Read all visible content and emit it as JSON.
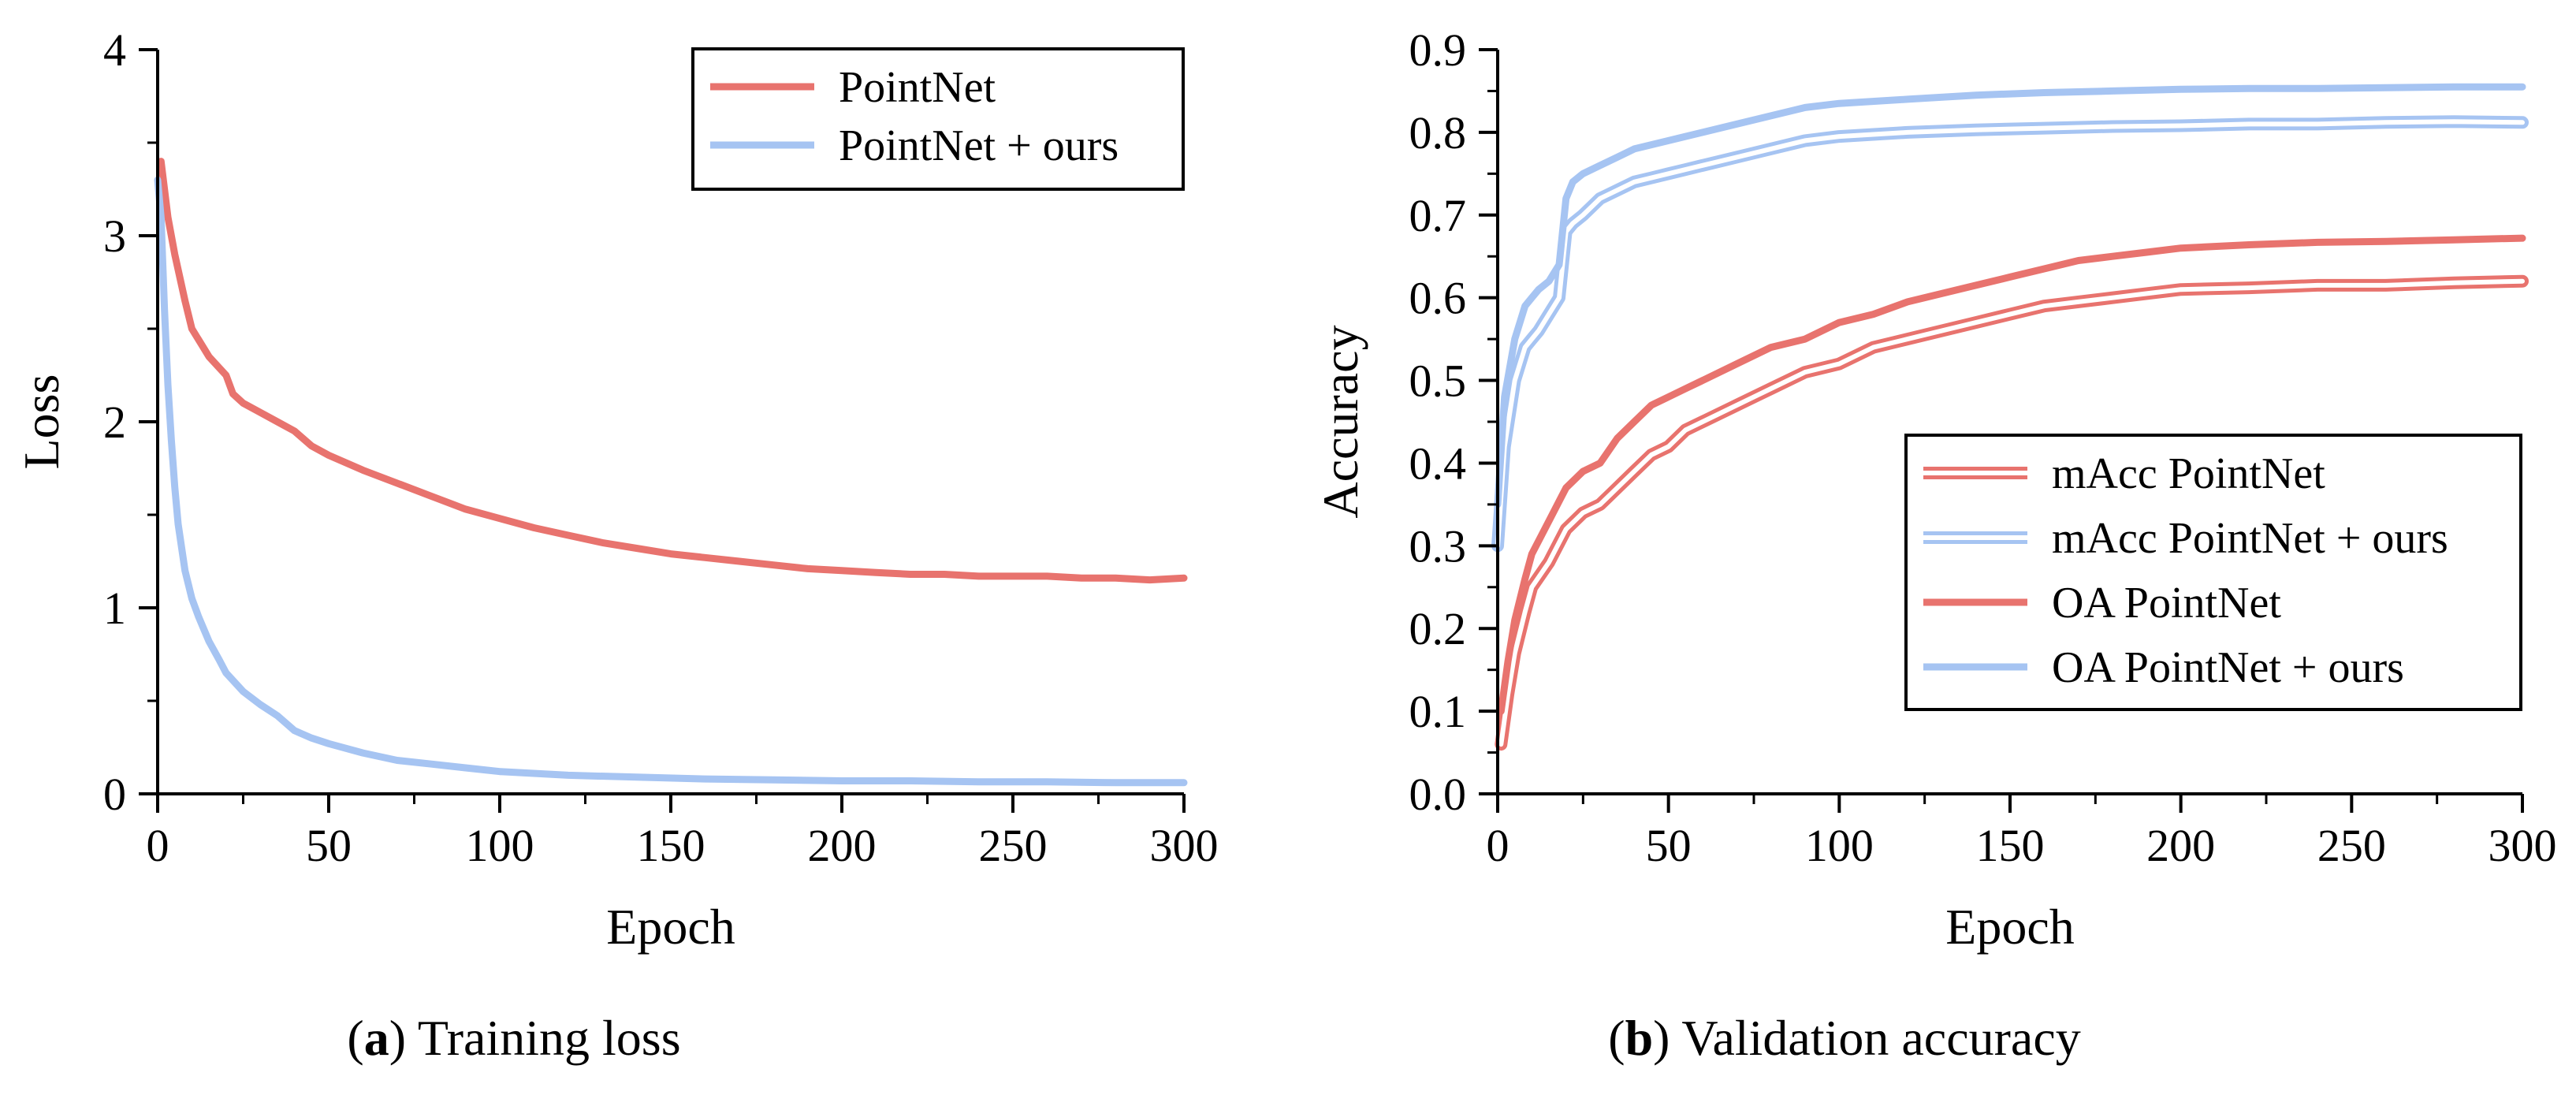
{
  "colors": {
    "red": "#e8736e",
    "blue": "#a6c4f2"
  },
  "captions": {
    "a": {
      "letter": "a",
      "open": "(",
      "close": ")",
      "text": " Training loss"
    },
    "b": {
      "letter": "b",
      "open": "(",
      "close": ")",
      "text": " Validation accuracy"
    }
  },
  "chart_data": [
    {
      "id": "training-loss",
      "type": "line",
      "title": "",
      "xlabel": "Epoch",
      "ylabel": "Loss",
      "xlim": [
        0,
        300
      ],
      "ylim": [
        0,
        4
      ],
      "xticks": [
        0,
        50,
        100,
        150,
        200,
        250,
        300
      ],
      "xticklabels": [
        "0",
        "50",
        "100",
        "150",
        "200",
        "250",
        "300"
      ],
      "yticks": [
        0,
        1,
        2,
        3,
        4
      ],
      "yticklabels": [
        "0",
        "1",
        "2",
        "3",
        "4"
      ],
      "legend_position": "top-right",
      "series": [
        {
          "name": "PointNet",
          "style": "solid",
          "color": "red",
          "points": [
            [
              1,
              3.4
            ],
            [
              3,
              3.1
            ],
            [
              5,
              2.9
            ],
            [
              8,
              2.65
            ],
            [
              10,
              2.5
            ],
            [
              15,
              2.35
            ],
            [
              20,
              2.25
            ],
            [
              22,
              2.15
            ],
            [
              25,
              2.1
            ],
            [
              30,
              2.05
            ],
            [
              35,
              2.0
            ],
            [
              40,
              1.95
            ],
            [
              45,
              1.87
            ],
            [
              50,
              1.82
            ],
            [
              60,
              1.74
            ],
            [
              70,
              1.67
            ],
            [
              80,
              1.6
            ],
            [
              90,
              1.53
            ],
            [
              100,
              1.48
            ],
            [
              110,
              1.43
            ],
            [
              120,
              1.39
            ],
            [
              130,
              1.35
            ],
            [
              140,
              1.32
            ],
            [
              150,
              1.29
            ],
            [
              160,
              1.27
            ],
            [
              170,
              1.25
            ],
            [
              180,
              1.23
            ],
            [
              190,
              1.21
            ],
            [
              200,
              1.2
            ],
            [
              210,
              1.19
            ],
            [
              220,
              1.18
            ],
            [
              230,
              1.18
            ],
            [
              240,
              1.17
            ],
            [
              250,
              1.17
            ],
            [
              260,
              1.17
            ],
            [
              270,
              1.16
            ],
            [
              280,
              1.16
            ],
            [
              290,
              1.15
            ],
            [
              300,
              1.16
            ]
          ]
        },
        {
          "name": "PointNet + ours",
          "style": "solid",
          "color": "blue",
          "points": [
            [
              0,
              3.3
            ],
            [
              1,
              3.1
            ],
            [
              2,
              2.6
            ],
            [
              3,
              2.2
            ],
            [
              4,
              1.9
            ],
            [
              5,
              1.65
            ],
            [
              6,
              1.45
            ],
            [
              8,
              1.2
            ],
            [
              10,
              1.05
            ],
            [
              12,
              0.95
            ],
            [
              15,
              0.82
            ],
            [
              18,
              0.72
            ],
            [
              20,
              0.65
            ],
            [
              25,
              0.55
            ],
            [
              30,
              0.48
            ],
            [
              35,
              0.42
            ],
            [
              40,
              0.34
            ],
            [
              45,
              0.3
            ],
            [
              50,
              0.27
            ],
            [
              60,
              0.22
            ],
            [
              70,
              0.18
            ],
            [
              80,
              0.16
            ],
            [
              90,
              0.14
            ],
            [
              100,
              0.12
            ],
            [
              120,
              0.1
            ],
            [
              140,
              0.09
            ],
            [
              160,
              0.08
            ],
            [
              180,
              0.075
            ],
            [
              200,
              0.07
            ],
            [
              220,
              0.07
            ],
            [
              240,
              0.065
            ],
            [
              260,
              0.065
            ],
            [
              280,
              0.06
            ],
            [
              300,
              0.06
            ]
          ]
        }
      ]
    },
    {
      "id": "validation-accuracy",
      "type": "line",
      "title": "",
      "xlabel": "Epoch",
      "ylabel": "Accuracy",
      "xlim": [
        0,
        300
      ],
      "ylim": [
        0,
        0.9
      ],
      "xticks": [
        0,
        50,
        100,
        150,
        200,
        250,
        300
      ],
      "xticklabels": [
        "0",
        "50",
        "100",
        "150",
        "200",
        "250",
        "300"
      ],
      "yticks": [
        0,
        0.1,
        0.2,
        0.3,
        0.4,
        0.5,
        0.6,
        0.7,
        0.8,
        0.9
      ],
      "yticklabels": [
        "0.0",
        "0.1",
        "0.2",
        "0.3",
        "0.4",
        "0.5",
        "0.6",
        "0.7",
        "0.8",
        "0.9"
      ],
      "legend_position": "bottom-right",
      "series": [
        {
          "name": "mAcc PointNet",
          "style": "double",
          "color": "red",
          "points": [
            [
              1,
              0.06
            ],
            [
              3,
              0.12
            ],
            [
              5,
              0.17
            ],
            [
              8,
              0.22
            ],
            [
              10,
              0.25
            ],
            [
              15,
              0.28
            ],
            [
              20,
              0.32
            ],
            [
              25,
              0.34
            ],
            [
              30,
              0.35
            ],
            [
              35,
              0.37
            ],
            [
              40,
              0.39
            ],
            [
              45,
              0.41
            ],
            [
              50,
              0.42
            ],
            [
              55,
              0.44
            ],
            [
              60,
              0.45
            ],
            [
              70,
              0.47
            ],
            [
              80,
              0.49
            ],
            [
              90,
              0.51
            ],
            [
              100,
              0.52
            ],
            [
              110,
              0.54
            ],
            [
              120,
              0.55
            ],
            [
              130,
              0.56
            ],
            [
              140,
              0.57
            ],
            [
              150,
              0.58
            ],
            [
              160,
              0.59
            ],
            [
              170,
              0.595
            ],
            [
              180,
              0.6
            ],
            [
              190,
              0.605
            ],
            [
              200,
              0.61
            ],
            [
              220,
              0.612
            ],
            [
              240,
              0.615
            ],
            [
              260,
              0.615
            ],
            [
              280,
              0.618
            ],
            [
              300,
              0.62
            ]
          ]
        },
        {
          "name": "mAcc PointNet + ours",
          "style": "double",
          "color": "blue",
          "points": [
            [
              0,
              0.3
            ],
            [
              2,
              0.42
            ],
            [
              5,
              0.5
            ],
            [
              8,
              0.54
            ],
            [
              10,
              0.55
            ],
            [
              12,
              0.56
            ],
            [
              15,
              0.58
            ],
            [
              18,
              0.6
            ],
            [
              20,
              0.68
            ],
            [
              22,
              0.69
            ],
            [
              25,
              0.7
            ],
            [
              30,
              0.72
            ],
            [
              35,
              0.73
            ],
            [
              40,
              0.74
            ],
            [
              45,
              0.745
            ],
            [
              50,
              0.75
            ],
            [
              55,
              0.755
            ],
            [
              60,
              0.76
            ],
            [
              70,
              0.77
            ],
            [
              80,
              0.78
            ],
            [
              90,
              0.79
            ],
            [
              100,
              0.795
            ],
            [
              120,
              0.8
            ],
            [
              140,
              0.803
            ],
            [
              160,
              0.805
            ],
            [
              180,
              0.807
            ],
            [
              200,
              0.808
            ],
            [
              220,
              0.81
            ],
            [
              240,
              0.81
            ],
            [
              260,
              0.812
            ],
            [
              280,
              0.813
            ],
            [
              300,
              0.812
            ]
          ]
        },
        {
          "name": "OA PointNet",
          "style": "solid",
          "color": "red",
          "points": [
            [
              1,
              0.1
            ],
            [
              3,
              0.16
            ],
            [
              5,
              0.21
            ],
            [
              8,
              0.26
            ],
            [
              10,
              0.29
            ],
            [
              15,
              0.33
            ],
            [
              20,
              0.37
            ],
            [
              25,
              0.39
            ],
            [
              30,
              0.4
            ],
            [
              35,
              0.43
            ],
            [
              40,
              0.45
            ],
            [
              45,
              0.47
            ],
            [
              50,
              0.48
            ],
            [
              55,
              0.49
            ],
            [
              60,
              0.5
            ],
            [
              70,
              0.52
            ],
            [
              80,
              0.54
            ],
            [
              90,
              0.55
            ],
            [
              100,
              0.57
            ],
            [
              110,
              0.58
            ],
            [
              120,
              0.595
            ],
            [
              130,
              0.605
            ],
            [
              140,
              0.615
            ],
            [
              150,
              0.625
            ],
            [
              160,
              0.635
            ],
            [
              170,
              0.645
            ],
            [
              180,
              0.65
            ],
            [
              190,
              0.655
            ],
            [
              200,
              0.66
            ],
            [
              220,
              0.664
            ],
            [
              240,
              0.667
            ],
            [
              260,
              0.668
            ],
            [
              280,
              0.67
            ],
            [
              300,
              0.672
            ]
          ]
        },
        {
          "name": "OA PointNet + ours",
          "style": "solid",
          "color": "blue",
          "points": [
            [
              0,
              0.35
            ],
            [
              2,
              0.48
            ],
            [
              5,
              0.55
            ],
            [
              8,
              0.59
            ],
            [
              10,
              0.6
            ],
            [
              12,
              0.61
            ],
            [
              15,
              0.62
            ],
            [
              18,
              0.64
            ],
            [
              20,
              0.72
            ],
            [
              22,
              0.74
            ],
            [
              25,
              0.75
            ],
            [
              30,
              0.76
            ],
            [
              35,
              0.77
            ],
            [
              40,
              0.78
            ],
            [
              45,
              0.785
            ],
            [
              50,
              0.79
            ],
            [
              55,
              0.795
            ],
            [
              60,
              0.8
            ],
            [
              70,
              0.81
            ],
            [
              80,
              0.82
            ],
            [
              90,
              0.83
            ],
            [
              100,
              0.835
            ],
            [
              120,
              0.84
            ],
            [
              140,
              0.845
            ],
            [
              160,
              0.848
            ],
            [
              180,
              0.85
            ],
            [
              200,
              0.852
            ],
            [
              220,
              0.853
            ],
            [
              240,
              0.853
            ],
            [
              260,
              0.854
            ],
            [
              280,
              0.855
            ],
            [
              300,
              0.855
            ]
          ]
        }
      ]
    }
  ]
}
